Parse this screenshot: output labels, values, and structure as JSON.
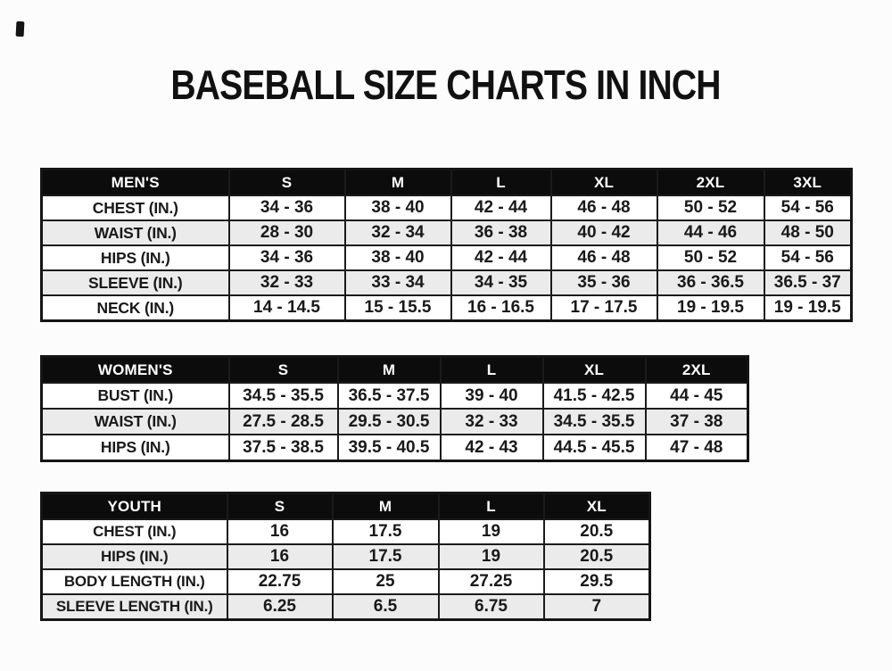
{
  "title": "BASEBALL SIZE CHARTS IN INCH",
  "colors": {
    "header_bg": "#0c0c0c",
    "header_text": "#ffffff",
    "alt_row_bg": "#ebebeb",
    "border": "#1b1b1b",
    "text": "#191919",
    "page_bg": "#fcfcfc"
  },
  "tables": [
    {
      "name": "mens",
      "header": [
        "MEN'S",
        "S",
        "M",
        "L",
        "XL",
        "2XL",
        "3XL"
      ],
      "rows": [
        [
          "CHEST (IN.)",
          "34 - 36",
          "38 - 40",
          "42 - 44",
          "46 - 48",
          "50 - 52",
          "54 - 56"
        ],
        [
          "WAIST (IN.)",
          "28 - 30",
          "32 - 34",
          "36 - 38",
          "40 - 42",
          "44 - 46",
          "48 - 50"
        ],
        [
          "HIPS (IN.)",
          "34 - 36",
          "38 - 40",
          "42 - 44",
          "46 - 48",
          "50 - 52",
          "54 - 56"
        ],
        [
          "SLEEVE (IN.)",
          "32 - 33",
          "33 - 34",
          "34 - 35",
          "35 - 36",
          "36 - 36.5",
          "36.5 - 37"
        ],
        [
          "NECK (IN.)",
          "14 - 14.5",
          "15 - 15.5",
          "16 - 16.5",
          "17 - 17.5",
          "19 - 19.5",
          "19 - 19.5"
        ]
      ]
    },
    {
      "name": "womens",
      "header": [
        "WOMEN'S",
        "S",
        "M",
        "L",
        "XL",
        "2XL"
      ],
      "rows": [
        [
          "BUST (IN.)",
          "34.5 - 35.5",
          "36.5 - 37.5",
          "39 - 40",
          "41.5 - 42.5",
          "44 - 45"
        ],
        [
          "WAIST (IN.)",
          "27.5 - 28.5",
          "29.5 - 30.5",
          "32 - 33",
          "34.5 - 35.5",
          "37 - 38"
        ],
        [
          "HIPS (IN.)",
          "37.5 - 38.5",
          "39.5 - 40.5",
          "42 - 43",
          "44.5 - 45.5",
          "47 - 48"
        ]
      ]
    },
    {
      "name": "youth",
      "header": [
        "YOUTH",
        "S",
        "M",
        "L",
        "XL"
      ],
      "rows": [
        [
          "CHEST (IN.)",
          "16",
          "17.5",
          "19",
          "20.5"
        ],
        [
          "HIPS (IN.)",
          "16",
          "17.5",
          "19",
          "20.5"
        ],
        [
          "BODY LENGTH (IN.)",
          "22.75",
          "25",
          "27.25",
          "29.5"
        ],
        [
          "SLEEVE LENGTH (IN.)",
          "6.25",
          "6.5",
          "6.75",
          "7"
        ]
      ]
    }
  ]
}
